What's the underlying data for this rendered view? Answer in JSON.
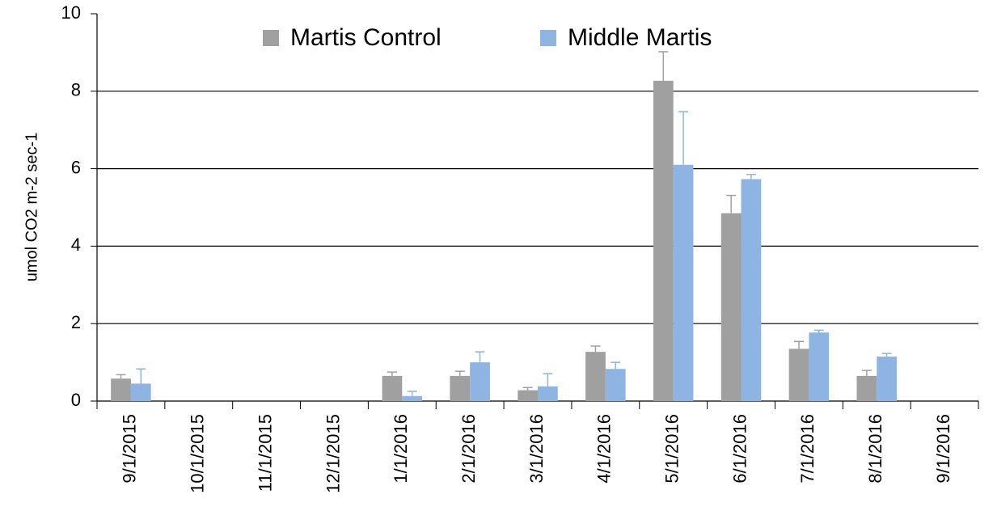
{
  "chart_data": {
    "type": "bar",
    "ylabel": "umol CO2 m-2 sec-1",
    "categories": [
      "9/1/2015",
      "10/1/2015",
      "11/1/2015",
      "12/1/2015",
      "1/1/2016",
      "2/1/2016",
      "3/1/2016",
      "4/1/2016",
      "5/1/2016",
      "6/1/2016",
      "7/1/2016",
      "8/1/2016",
      "9/1/2016"
    ],
    "series": [
      {
        "name": "Martis Control",
        "color": "#a0a0a0",
        "values": [
          0.58,
          null,
          null,
          null,
          0.65,
          0.65,
          0.28,
          1.27,
          8.27,
          4.85,
          1.35,
          0.65,
          null
        ],
        "errors": [
          0.1,
          null,
          null,
          null,
          0.1,
          0.12,
          0.07,
          0.15,
          0.75,
          0.46,
          0.19,
          0.14,
          null
        ]
      },
      {
        "name": "Middle Martis",
        "color": "#8db4e2",
        "values": [
          0.45,
          null,
          null,
          null,
          0.13,
          1.0,
          0.38,
          0.83,
          6.1,
          5.73,
          1.77,
          1.15,
          null
        ],
        "errors": [
          0.38,
          null,
          null,
          null,
          0.12,
          0.27,
          0.33,
          0.17,
          1.37,
          0.12,
          0.06,
          0.08,
          null
        ]
      }
    ],
    "ylim": [
      0,
      10
    ],
    "yticks": [
      0,
      2,
      4,
      6,
      8,
      10
    ],
    "grid": true
  }
}
